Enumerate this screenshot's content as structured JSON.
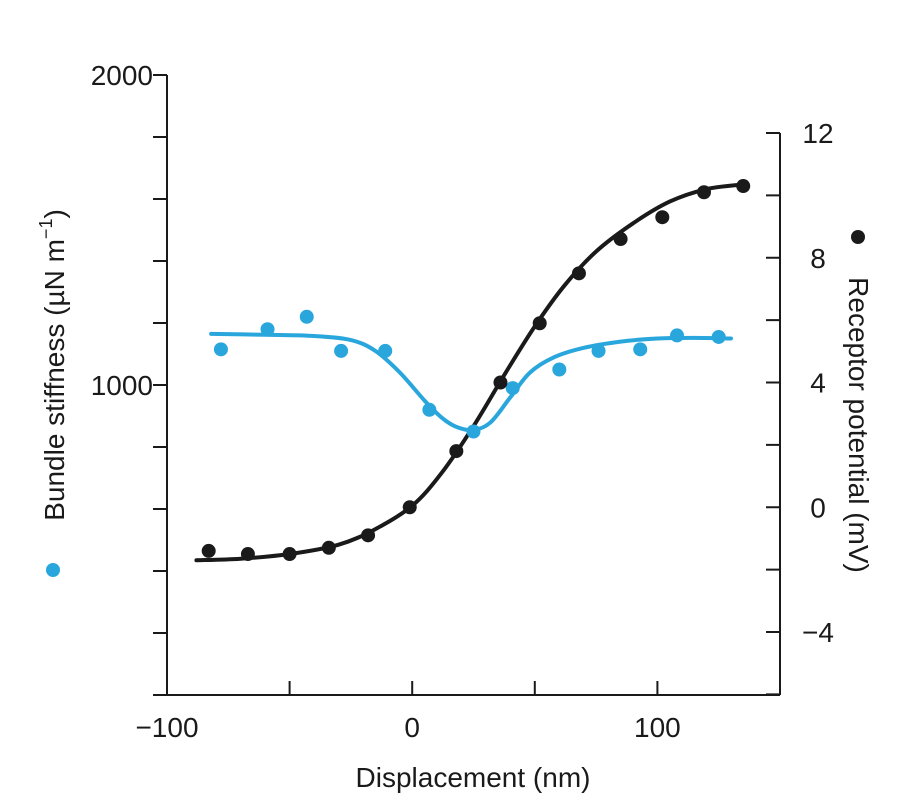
{
  "chart_data": {
    "type": "scatter",
    "title": "",
    "xlabel": "Displacement (nm)",
    "ylabel_left": {
      "text": "Bundle stiffness (",
      "mu": "µ",
      "unit": "N m",
      "exp": "−1",
      "close": ")"
    },
    "ylabel_right": "Receptor potential (mV)",
    "xlim": [
      -100,
      150
    ],
    "ylim_left": [
      0,
      2000
    ],
    "ylim_right": [
      -6,
      12
    ],
    "x_ticks": [
      -100,
      -50,
      0,
      50,
      100
    ],
    "x_tick_labels": [
      "−100",
      "",
      "0",
      "",
      "100"
    ],
    "y_left_ticks": [
      0,
      200,
      400,
      600,
      800,
      1000,
      1200,
      1400,
      1600,
      1800,
      2000
    ],
    "y_left_tick_labels": [
      "",
      "",
      "",
      "",
      "",
      "1000",
      "",
      "",
      "",
      "",
      "2000"
    ],
    "y_right_ticks": [
      -6,
      -4,
      -2,
      0,
      2,
      4,
      6,
      8,
      10,
      12
    ],
    "y_right_tick_labels": [
      "",
      "−4",
      "",
      "0",
      "",
      "4",
      "",
      "8",
      "",
      "12"
    ],
    "colors": {
      "stiffness": "#29a6dc",
      "potential": "#1a1a1a",
      "axis": "#1a1a1a"
    },
    "series": [
      {
        "axis": "left",
        "color": "#29a6dc",
        "points": {
          "x": [
            -78,
            -59,
            -43,
            -29,
            -11,
            7,
            25,
            41,
            60,
            76,
            93,
            108,
            125
          ],
          "y": [
            1115,
            1180,
            1220,
            1110,
            1110,
            920,
            850,
            990,
            1050,
            1110,
            1115,
            1160,
            1155
          ]
        },
        "curve": {
          "x": [
            -82,
            -60,
            -40,
            -25,
            -15,
            -5,
            5,
            12,
            18,
            25,
            32,
            40,
            48,
            58,
            70,
            85,
            100,
            115,
            130
          ],
          "y": [
            1165,
            1162,
            1158,
            1145,
            1110,
            1040,
            950,
            895,
            865,
            855,
            880,
            960,
            1040,
            1090,
            1120,
            1140,
            1150,
            1152,
            1150
          ]
        }
      },
      {
        "axis": "right",
        "color": "#1a1a1a",
        "points": {
          "x": [
            -83,
            -67,
            -50,
            -34,
            -18,
            -1,
            18,
            36,
            52,
            68,
            85,
            102,
            119,
            135
          ],
          "y": [
            -1.4,
            -1.5,
            -1.5,
            -1.3,
            -0.9,
            0.0,
            1.8,
            4.0,
            5.9,
            7.5,
            8.6,
            9.3,
            10.1,
            10.3
          ]
        },
        "curve": {
          "x": [
            -88,
            -70,
            -50,
            -30,
            -15,
            0,
            12,
            25,
            38,
            50,
            62,
            75,
            90,
            105,
            120,
            135
          ],
          "y": [
            -1.7,
            -1.65,
            -1.5,
            -1.2,
            -0.7,
            0.05,
            1.1,
            2.6,
            4.3,
            5.8,
            7.1,
            8.2,
            9.1,
            9.8,
            10.2,
            10.35
          ]
        }
      }
    ]
  }
}
